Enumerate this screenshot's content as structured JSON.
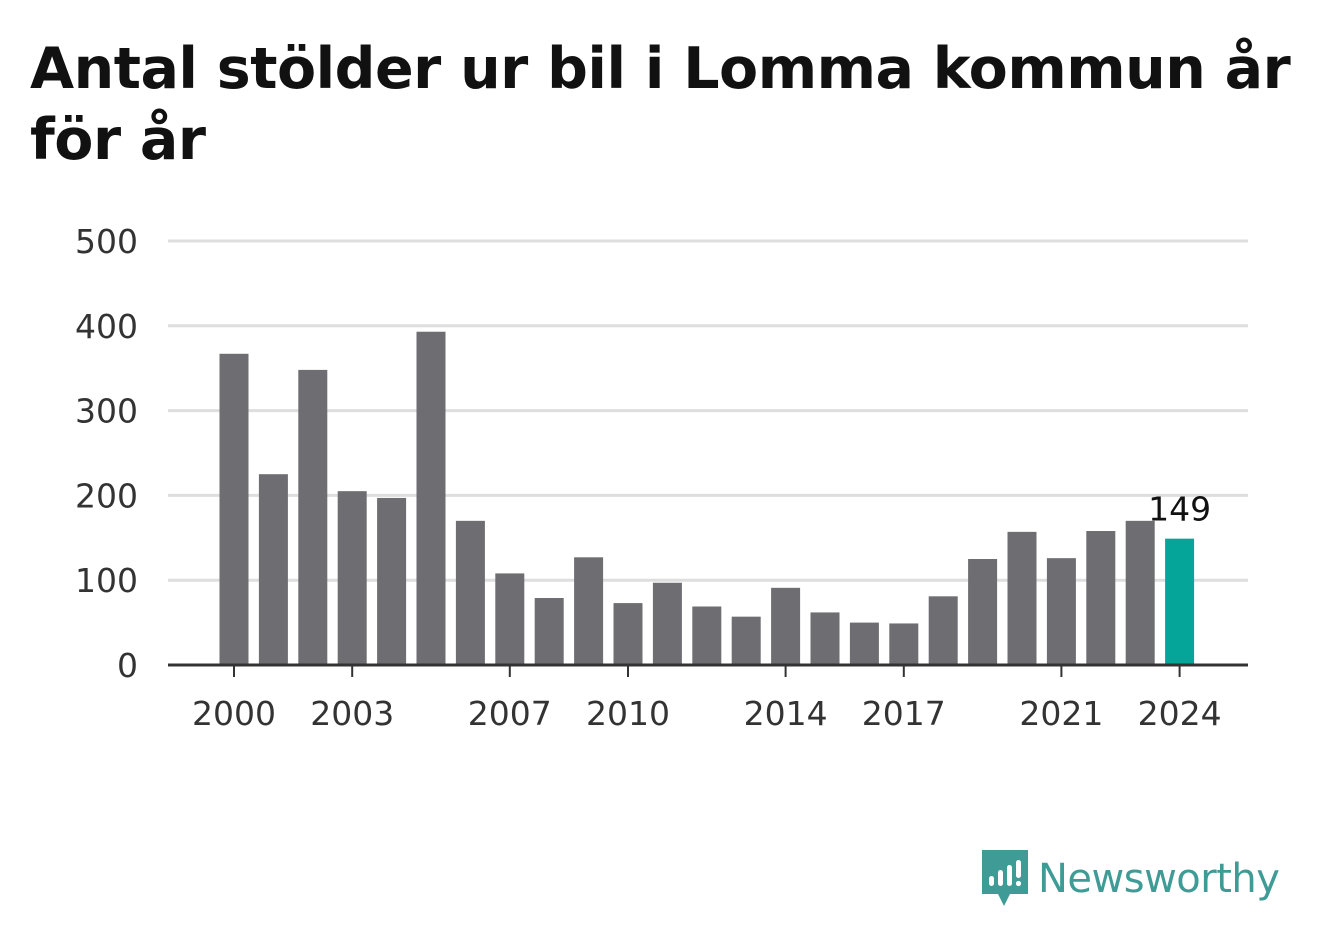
{
  "title": "Antal stölder ur bil i Lomma kommun år för år",
  "brand": {
    "name": "Newsworthy",
    "icon": "newsworthy-logo-icon"
  },
  "colors": {
    "bar": "#6e6d72",
    "highlight": "#06a59a",
    "grid": "#dedede",
    "axis": "#333333",
    "text": "#333333",
    "brand": "#3f9b95"
  },
  "chart_data": {
    "type": "bar",
    "title": "Antal stölder ur bil i Lomma kommun år för år",
    "xlabel": "",
    "ylabel": "",
    "x": [
      2000,
      2001,
      2002,
      2003,
      2004,
      2005,
      2006,
      2007,
      2008,
      2009,
      2010,
      2011,
      2012,
      2013,
      2014,
      2015,
      2016,
      2017,
      2018,
      2019,
      2020,
      2021,
      2022,
      2023,
      2024
    ],
    "values": [
      367,
      225,
      348,
      205,
      197,
      393,
      170,
      108,
      79,
      127,
      73,
      97,
      69,
      57,
      91,
      62,
      50,
      49,
      81,
      125,
      157,
      126,
      158,
      170,
      149
    ],
    "ylim": [
      0,
      500
    ],
    "yticks": [
      0,
      100,
      200,
      300,
      400,
      500
    ],
    "xticks": [
      "2000",
      "2003",
      "2007",
      "2010",
      "2014",
      "2017",
      "2021",
      "2024"
    ],
    "highlight_index": 24,
    "highlight_label": "149",
    "grid": true,
    "legend": "none"
  }
}
